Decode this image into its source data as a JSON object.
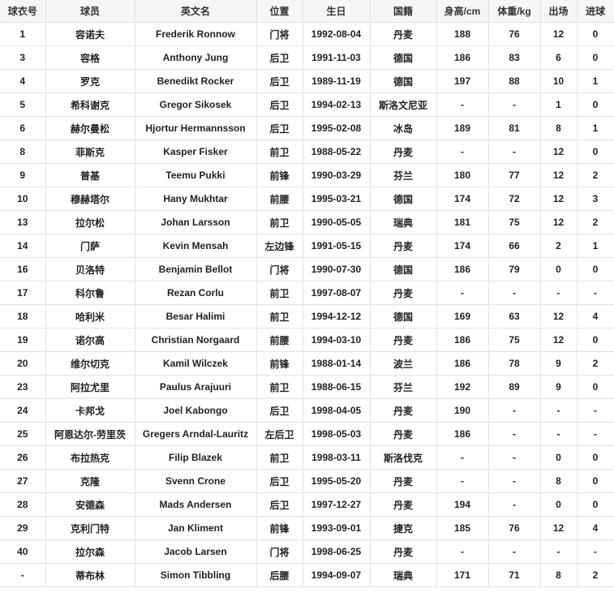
{
  "table": {
    "headers": [
      "球衣号",
      "球员",
      "英文名",
      "位置",
      "生日",
      "国籍",
      "身高/cm",
      "体重/kg",
      "出场",
      "进球"
    ],
    "rows": [
      [
        "1",
        "容诺夫",
        "Frederik Ronnow",
        "门将",
        "1992-08-04",
        "丹麦",
        "188",
        "76",
        "12",
        "0"
      ],
      [
        "3",
        "容格",
        "Anthony Jung",
        "后卫",
        "1991-11-03",
        "德国",
        "186",
        "83",
        "6",
        "0"
      ],
      [
        "4",
        "罗克",
        "Benedikt Rocker",
        "后卫",
        "1989-11-19",
        "德国",
        "197",
        "88",
        "10",
        "1"
      ],
      [
        "5",
        "希科谢克",
        "Gregor Sikosek",
        "后卫",
        "1994-02-13",
        "斯洛文尼亚",
        "-",
        "-",
        "1",
        "0"
      ],
      [
        "6",
        "赫尔曼松",
        "Hjortur Hermannsson",
        "后卫",
        "1995-02-08",
        "冰岛",
        "189",
        "81",
        "8",
        "1"
      ],
      [
        "8",
        "菲斯克",
        "Kasper Fisker",
        "前卫",
        "1988-05-22",
        "丹麦",
        "-",
        "-",
        "12",
        "0"
      ],
      [
        "9",
        "普基",
        "Teemu Pukki",
        "前锋",
        "1990-03-29",
        "芬兰",
        "180",
        "77",
        "12",
        "2"
      ],
      [
        "10",
        "穆赫塔尔",
        "Hany Mukhtar",
        "前腰",
        "1995-03-21",
        "德国",
        "174",
        "72",
        "12",
        "3"
      ],
      [
        "13",
        "拉尔松",
        "Johan Larsson",
        "前卫",
        "1990-05-05",
        "瑞典",
        "181",
        "75",
        "12",
        "2"
      ],
      [
        "14",
        "门萨",
        "Kevin Mensah",
        "左边锋",
        "1991-05-15",
        "丹麦",
        "174",
        "66",
        "2",
        "1"
      ],
      [
        "16",
        "贝洛特",
        "Benjamin Bellot",
        "门将",
        "1990-07-30",
        "德国",
        "186",
        "79",
        "0",
        "0"
      ],
      [
        "17",
        "科尔鲁",
        "Rezan Corlu",
        "前卫",
        "1997-08-07",
        "丹麦",
        "-",
        "-",
        "-",
        "-"
      ],
      [
        "18",
        "哈利米",
        "Besar Halimi",
        "前卫",
        "1994-12-12",
        "德国",
        "169",
        "63",
        "12",
        "4"
      ],
      [
        "19",
        "诺尔高",
        "Christian Norgaard",
        "前腰",
        "1994-03-10",
        "丹麦",
        "186",
        "75",
        "12",
        "0"
      ],
      [
        "20",
        "维尔切克",
        "Kamil Wilczek",
        "前锋",
        "1988-01-14",
        "波兰",
        "186",
        "78",
        "9",
        "2"
      ],
      [
        "23",
        "阿拉尤里",
        "Paulus Arajuuri",
        "前卫",
        "1988-06-15",
        "芬兰",
        "192",
        "89",
        "9",
        "0"
      ],
      [
        "24",
        "卡邦戈",
        "Joel Kabongo",
        "后卫",
        "1998-04-05",
        "丹麦",
        "190",
        "-",
        "-",
        "-"
      ],
      [
        "25",
        "阿恩达尔-劳里茨",
        "Gregers Arndal-Lauritz",
        "左后卫",
        "1998-05-03",
        "丹麦",
        "186",
        "-",
        "-",
        "-"
      ],
      [
        "26",
        "布拉热克",
        "Filip Blazek",
        "前卫",
        "1998-03-11",
        "斯洛伐克",
        "-",
        "-",
        "0",
        "0"
      ],
      [
        "27",
        "克隆",
        "Svenn Crone",
        "后卫",
        "1995-05-20",
        "丹麦",
        "-",
        "-",
        "8",
        "0"
      ],
      [
        "28",
        "安德森",
        "Mads Andersen",
        "后卫",
        "1997-12-27",
        "丹麦",
        "194",
        "-",
        "0",
        "0"
      ],
      [
        "29",
        "克利门特",
        "Jan Kliment",
        "前锋",
        "1993-09-01",
        "捷克",
        "185",
        "76",
        "12",
        "4"
      ],
      [
        "40",
        "拉尔森",
        "Jacob Larsen",
        "门将",
        "1998-06-25",
        "丹麦",
        "-",
        "-",
        "-",
        "-"
      ],
      [
        "-",
        "蒂布林",
        "Simon Tibbling",
        "后腰",
        "1994-09-07",
        "瑞典",
        "171",
        "71",
        "8",
        "2"
      ]
    ]
  }
}
